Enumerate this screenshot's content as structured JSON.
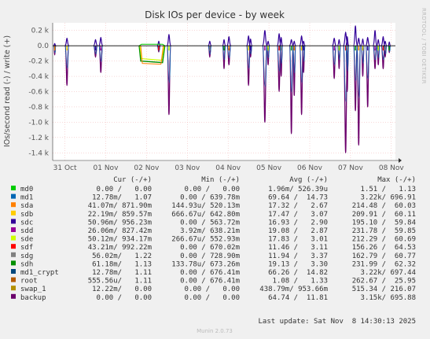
{
  "chart_data": {
    "type": "line",
    "title": "Disk IOs per device - by week",
    "ylabel": "IOs/second read (-) / write (+)",
    "side_label": "RRDTOOL / TOBI OETIKER",
    "ylim": [
      -1500,
      300
    ],
    "y_ticks": [
      {
        "value": 200,
        "label": "0.2 k"
      },
      {
        "value": 0,
        "label": "0.0"
      },
      {
        "value": -200,
        "label": "-0.2 k"
      },
      {
        "value": -400,
        "label": "-0.4 k"
      },
      {
        "value": -600,
        "label": "-0.6 k"
      },
      {
        "value": -800,
        "label": "-0.8 k"
      },
      {
        "value": -1000,
        "label": "-1.0 k"
      },
      {
        "value": -1200,
        "label": "-1.2 k"
      },
      {
        "value": -1400,
        "label": "-1.4 k"
      }
    ],
    "x_range": [
      -0.3,
      8.1
    ],
    "x_ticks": [
      {
        "value": 0,
        "label": "31 Oct"
      },
      {
        "value": 1,
        "label": "01 Nov"
      },
      {
        "value": 2,
        "label": "02 Nov"
      },
      {
        "value": 3,
        "label": "03 Nov"
      },
      {
        "value": 4,
        "label": "04 Nov"
      },
      {
        "value": 5,
        "label": "05 Nov"
      },
      {
        "value": 6,
        "label": "06 Nov"
      },
      {
        "value": 7,
        "label": "07 Nov"
      },
      {
        "value": 8,
        "label": "08 Nov"
      }
    ],
    "spikes": [
      {
        "x": -0.25,
        "neg": -120,
        "pos": 30,
        "w": 0.03
      },
      {
        "x": 0.05,
        "neg": -520,
        "pos": 100,
        "w": 0.05
      },
      {
        "x": 0.75,
        "neg": -150,
        "pos": 80,
        "w": 0.05
      },
      {
        "x": 0.88,
        "neg": -350,
        "pos": 110,
        "w": 0.05
      },
      {
        "x": 2.55,
        "neg": -900,
        "pos": 150,
        "w": 0.05
      },
      {
        "x": 2.3,
        "neg": -80,
        "pos": 60,
        "w": 0.04
      },
      {
        "x": 3.55,
        "neg": -150,
        "pos": 60,
        "w": 0.04
      },
      {
        "x": 3.9,
        "neg": -300,
        "pos": 80,
        "w": 0.04
      },
      {
        "x": 4.02,
        "neg": -250,
        "pos": 120,
        "w": 0.05
      },
      {
        "x": 4.5,
        "neg": -520,
        "pos": 130,
        "w": 0.05
      },
      {
        "x": 4.55,
        "neg": -150,
        "pos": 90,
        "w": 0.04
      },
      {
        "x": 4.9,
        "neg": -1000,
        "pos": 200,
        "w": 0.06
      },
      {
        "x": 4.98,
        "neg": -250,
        "pos": 60,
        "w": 0.04
      },
      {
        "x": 5.25,
        "neg": -600,
        "pos": 160,
        "w": 0.05
      },
      {
        "x": 5.3,
        "neg": -400,
        "pos": 110,
        "w": 0.04
      },
      {
        "x": 5.55,
        "neg": -1150,
        "pos": 80,
        "w": 0.05
      },
      {
        "x": 5.62,
        "neg": -650,
        "pos": 60,
        "w": 0.04
      },
      {
        "x": 5.8,
        "neg": -900,
        "pos": 130,
        "w": 0.05
      },
      {
        "x": 5.85,
        "neg": -350,
        "pos": 60,
        "w": 0.04
      },
      {
        "x": 6.6,
        "neg": -430,
        "pos": 100,
        "w": 0.05
      },
      {
        "x": 6.72,
        "neg": -300,
        "pos": 80,
        "w": 0.04
      },
      {
        "x": 6.88,
        "neg": -1400,
        "pos": 180,
        "w": 0.06
      },
      {
        "x": 6.92,
        "neg": -600,
        "pos": 120,
        "w": 0.04
      },
      {
        "x": 7.12,
        "neg": -850,
        "pos": 260,
        "w": 0.05
      },
      {
        "x": 7.2,
        "neg": -1300,
        "pos": 100,
        "w": 0.05
      },
      {
        "x": 7.3,
        "neg": -400,
        "pos": 90,
        "w": 0.04
      },
      {
        "x": 7.42,
        "neg": -800,
        "pos": 110,
        "w": 0.05
      },
      {
        "x": 7.6,
        "neg": -300,
        "pos": 200,
        "w": 0.05
      },
      {
        "x": 7.68,
        "neg": -250,
        "pos": 80,
        "w": 0.04
      },
      {
        "x": 7.8,
        "neg": -300,
        "pos": 120,
        "w": 0.05
      },
      {
        "x": 7.85,
        "neg": -150,
        "pos": 60,
        "w": 0.04
      },
      {
        "x": 7.95,
        "neg": -90,
        "pos": 50,
        "w": 0.03
      }
    ],
    "plateau": {
      "x_start": 1.82,
      "x_end": 2.45,
      "neg": -200,
      "pos": 20
    },
    "legend": {
      "headers": {
        "cur": "Cur (-/+)",
        "min": "Min (-/+)",
        "avg": "Avg (-/+)",
        "max": "Max (-/+)"
      },
      "rows": [
        {
          "name": "md0",
          "color": "#00cc00",
          "cur": "0.00 /   0.00",
          "min": "0.00 /   0.00",
          "avg": "1.96m/ 526.39u",
          "max": "1.51 /   1.13"
        },
        {
          "name": "md1",
          "color": "#0066b3",
          "cur": "12.78m/   1.07",
          "min": "0.00 / 639.78m",
          "avg": "69.64 /  14.73",
          "max": "3.22k/ 696.91"
        },
        {
          "name": "sda",
          "color": "#ff8000",
          "cur": "41.07m/ 871.90m",
          "min": "144.93u/ 520.13m",
          "avg": "17.32 /   2.67",
          "max": "214.48 /  60.03"
        },
        {
          "name": "sdb",
          "color": "#ffcc00",
          "cur": "22.19m/ 859.57m",
          "min": "666.67u/ 642.80m",
          "avg": "17.47 /   3.07",
          "max": "209.91 /  60.11"
        },
        {
          "name": "sdc",
          "color": "#330099",
          "cur": "50.96m/ 956.23m",
          "min": "0.00 / 563.72m",
          "avg": "16.93 /   2.90",
          "max": "195.10 /  59.84"
        },
        {
          "name": "sdd",
          "color": "#990099",
          "cur": "26.06m/ 827.42m",
          "min": "3.92m/ 638.21m",
          "avg": "19.08 /   2.87",
          "max": "231.78 /  59.85"
        },
        {
          "name": "sde",
          "color": "#ccff00",
          "cur": "50.12m/ 934.17m",
          "min": "266.67u/ 552.93m",
          "avg": "17.83 /   3.01",
          "max": "212.29 /  60.69"
        },
        {
          "name": "sdf",
          "color": "#ff0000",
          "cur": "43.21m/ 992.22m",
          "min": "0.00 / 670.02m",
          "avg": "11.46 /   3.11",
          "max": "156.26 /  64.53"
        },
        {
          "name": "sdg",
          "color": "#808080",
          "cur": "56.02m/   1.22",
          "min": "0.00 / 728.90m",
          "avg": "11.94 /   3.37",
          "max": "162.79 /  60.77"
        },
        {
          "name": "sdh",
          "color": "#008f00",
          "cur": "61.18m/   1.13",
          "min": "133.78u/ 673.26m",
          "avg": "19.13 /   3.30",
          "max": "231.99 /  62.32"
        },
        {
          "name": "md1_crypt",
          "color": "#00487d",
          "cur": "12.78m/   1.11",
          "min": "0.00 / 676.41m",
          "avg": "66.26 /  14.82",
          "max": "3.22k/ 697.44"
        },
        {
          "name": "root",
          "color": "#b35a00",
          "cur": "555.56u/   1.11",
          "min": "0.00 / 676.41m",
          "avg": "1.08 /   1.33",
          "max": "262.67 /  25.95"
        },
        {
          "name": "swap_1",
          "color": "#b38f00",
          "cur": "12.22m/   0.00",
          "min": "0.00 /   0.00",
          "avg": "438.79m/ 953.66m",
          "max": "515.34 / 216.07"
        },
        {
          "name": "backup",
          "color": "#6b006b",
          "cur": "0.00 /   0.00",
          "min": "0.00 /   0.00",
          "avg": "64.74 /  11.81",
          "max": "3.15k/ 695.88"
        }
      ]
    },
    "last_update": "Last update: Sat Nov  8 14:30:13 2025",
    "footer": "Munin 2.0.73"
  }
}
